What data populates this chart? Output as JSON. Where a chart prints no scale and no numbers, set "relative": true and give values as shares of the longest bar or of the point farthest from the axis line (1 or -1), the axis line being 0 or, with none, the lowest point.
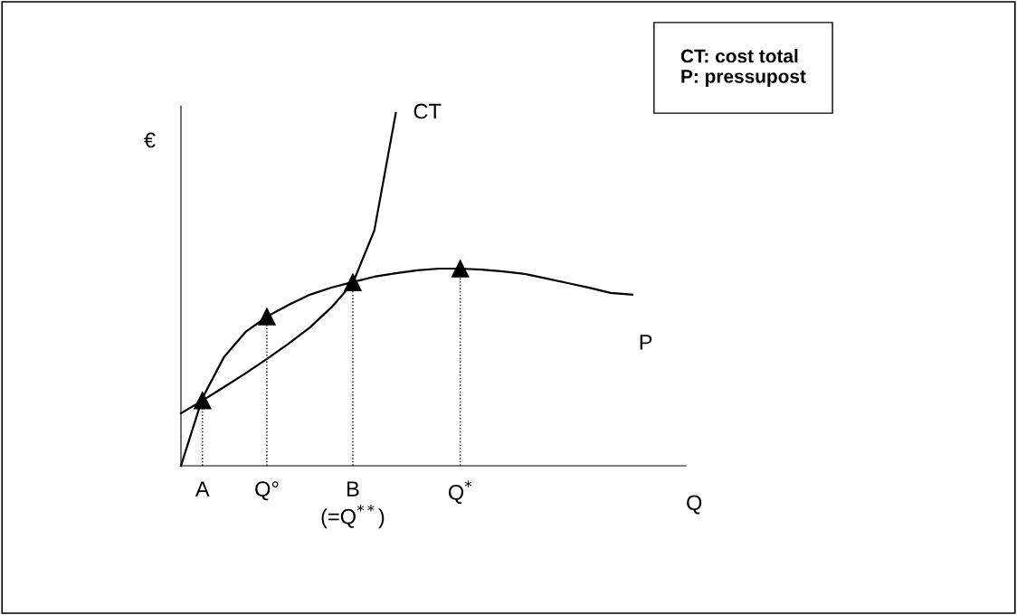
{
  "chart_data": {
    "type": "line",
    "relative": true,
    "xlabel": "Q",
    "ylabel": "€",
    "categories": [
      null,
      "A",
      null,
      null,
      "Q°",
      null,
      null,
      null,
      "B\n(=Q$^{**}$)",
      null,
      null,
      null,
      null,
      "Q$^{*}$",
      null,
      null,
      null,
      null,
      null,
      null,
      null,
      null,
      null,
      null
    ],
    "series": [
      {
        "name": "CT",
        "color": "#000000",
        "values": [
          0.149,
          0.185,
          0.223,
          0.262,
          0.303,
          0.346,
          0.392,
          0.449,
          0.518,
          0.667,
          1,
          null,
          null,
          null,
          null,
          null,
          null,
          null,
          null,
          null,
          null,
          null,
          null,
          null
        ]
      },
      {
        "name": "P",
        "color": "#000000",
        "values": [
          0,
          0.192,
          0.308,
          0.379,
          0.423,
          0.456,
          0.485,
          0.505,
          0.521,
          0.536,
          0.546,
          0.554,
          0.559,
          0.559,
          0.556,
          0.551,
          0.544,
          0.531,
          0.518,
          0.505,
          0.49,
          0.485,
          null,
          null
        ]
      },
      {
        "type": "lollipop",
        "color": "#000000",
        "marker": "triangle",
        "line_style": "dotted",
        "values": [
          null,
          0.185,
          null,
          null,
          0.423,
          null,
          null,
          null,
          0.52,
          null,
          null,
          null,
          null,
          0.559,
          null,
          null,
          null,
          null,
          null,
          null,
          null,
          null,
          null,
          null
        ]
      }
    ],
    "annotations": [
      "CT: cost total\nP: pressupost"
    ],
    "grid": false,
    "legend": false,
    "marker": "none",
    "line_style": "solid"
  }
}
